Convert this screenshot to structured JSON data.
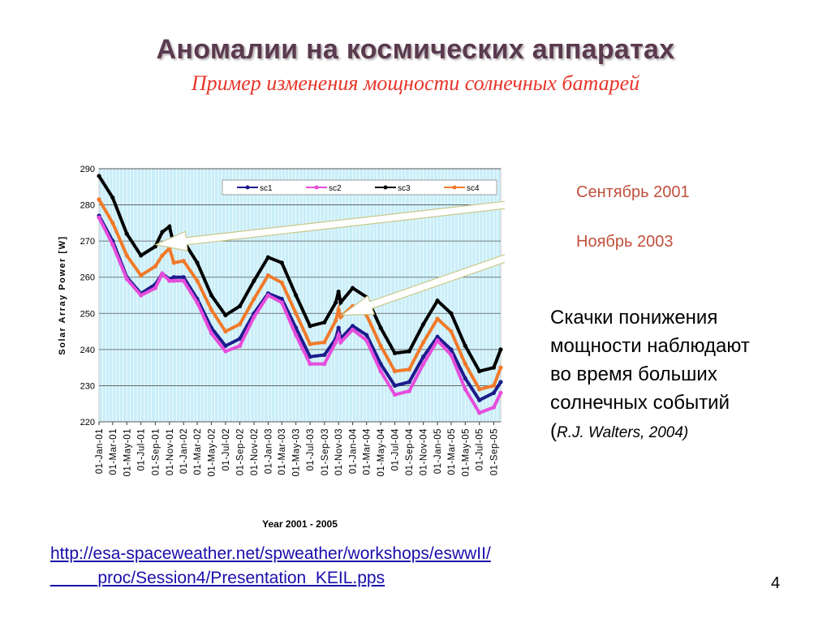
{
  "slide": {
    "title": "Аномалии на космических аппаратах",
    "subtitle": "Пример изменения мощности солнечных батарей",
    "note_1": "Сентябрь 2001",
    "note_2": "Ноябрь 2003",
    "body_lines": [
      "Скачки понижения",
      "мощности наблюдают",
      "во время больших",
      "солнечных событий"
    ],
    "citation_open": "(",
    "citation": "R.J. Walters, 2004)",
    "link_line1": "http://esa-spaceweather.net/spweather/workshops/eswwII/",
    "link_line2": "_____proc/Session4/Presentation_KEIL.pps",
    "page_number": "4"
  },
  "chart_data": {
    "type": "line",
    "title": "",
    "xlabel": "Year 2001 - 2005",
    "ylabel": "Solar Array Power [W]",
    "ylim": [
      220,
      290
    ],
    "yticks": [
      220,
      230,
      240,
      250,
      260,
      270,
      280,
      290
    ],
    "x_range": [
      "2001-01-01",
      "2005-10-01"
    ],
    "xtick_labels": [
      "01-Jan-01",
      "01-Mar-01",
      "01-May-01",
      "01-Jul-01",
      "01-Sep-01",
      "01-Nov-01",
      "01-Jan-02",
      "01-Mar-02",
      "01-May-02",
      "01-Jul-02",
      "01-Sep-02",
      "01-Nov-02",
      "01-Jan-03",
      "01-Mar-03",
      "01-May-03",
      "01-Jul-03",
      "01-Sep-03",
      "01-Nov-03",
      "01-Jan-04",
      "01-Mar-04",
      "01-May-04",
      "01-Jul-04",
      "01-Sep-04",
      "01-Nov-04",
      "01-Jan-05",
      "01-Mar-05",
      "01-May-05",
      "01-Jul-05",
      "01-Sep-05"
    ],
    "grid": true,
    "legend_position": "top",
    "background": "#c9eef8",
    "series": [
      {
        "name": "sc1",
        "color": "#1c1c8c",
        "points": [
          [
            "2001-01-01",
            277
          ],
          [
            "2001-03-01",
            270
          ],
          [
            "2001-05-01",
            260
          ],
          [
            "2001-07-01",
            255.5
          ],
          [
            "2001-09-01",
            258
          ],
          [
            "2001-10-01",
            261
          ],
          [
            "2001-11-01",
            259.5
          ],
          [
            "2001-11-20",
            260
          ],
          [
            "2002-01-01",
            260
          ],
          [
            "2002-03-01",
            254
          ],
          [
            "2002-05-01",
            246
          ],
          [
            "2002-07-01",
            241
          ],
          [
            "2002-09-01",
            243
          ],
          [
            "2002-11-01",
            250
          ],
          [
            "2003-01-01",
            255.5
          ],
          [
            "2003-03-01",
            254
          ],
          [
            "2003-05-01",
            246
          ],
          [
            "2003-07-01",
            238
          ],
          [
            "2003-09-01",
            238.5
          ],
          [
            "2003-10-20",
            243
          ],
          [
            "2003-11-01",
            246
          ],
          [
            "2003-11-10",
            243
          ],
          [
            "2004-01-01",
            246.5
          ],
          [
            "2004-03-01",
            244
          ],
          [
            "2004-05-01",
            236
          ],
          [
            "2004-07-01",
            230
          ],
          [
            "2004-09-01",
            231
          ],
          [
            "2004-11-01",
            238
          ],
          [
            "2005-01-01",
            243.5
          ],
          [
            "2005-03-01",
            240
          ],
          [
            "2005-05-01",
            232
          ],
          [
            "2005-07-01",
            226
          ],
          [
            "2005-09-01",
            228
          ],
          [
            "2005-10-01",
            231
          ]
        ]
      },
      {
        "name": "sc2",
        "color": "#e64ddc",
        "points": [
          [
            "2001-01-01",
            276.5
          ],
          [
            "2001-03-01",
            269
          ],
          [
            "2001-05-01",
            259.5
          ],
          [
            "2001-07-01",
            255
          ],
          [
            "2001-09-01",
            257
          ],
          [
            "2001-10-01",
            261
          ],
          [
            "2001-11-01",
            259
          ],
          [
            "2001-11-20",
            259
          ],
          [
            "2002-01-01",
            259
          ],
          [
            "2002-03-01",
            253
          ],
          [
            "2002-05-01",
            244.5
          ],
          [
            "2002-07-01",
            239.5
          ],
          [
            "2002-09-01",
            241
          ],
          [
            "2002-11-01",
            249
          ],
          [
            "2003-01-01",
            255
          ],
          [
            "2003-03-01",
            253
          ],
          [
            "2003-05-01",
            244
          ],
          [
            "2003-07-01",
            236
          ],
          [
            "2003-09-01",
            236
          ],
          [
            "2003-10-20",
            242
          ],
          [
            "2003-11-01",
            244
          ],
          [
            "2003-11-10",
            242
          ],
          [
            "2004-01-01",
            245.5
          ],
          [
            "2004-03-01",
            242.5
          ],
          [
            "2004-05-01",
            234
          ],
          [
            "2004-07-01",
            227.5
          ],
          [
            "2004-09-01",
            228.5
          ],
          [
            "2004-11-01",
            236
          ],
          [
            "2005-01-01",
            242.5
          ],
          [
            "2005-03-01",
            238.5
          ],
          [
            "2005-05-01",
            229
          ],
          [
            "2005-07-01",
            222.5
          ],
          [
            "2005-09-01",
            224
          ],
          [
            "2005-10-01",
            228
          ]
        ]
      },
      {
        "name": "sc3",
        "color": "#000000",
        "points": [
          [
            "2001-01-01",
            288
          ],
          [
            "2001-03-01",
            282
          ],
          [
            "2001-05-01",
            272
          ],
          [
            "2001-07-01",
            266
          ],
          [
            "2001-09-01",
            268.5
          ],
          [
            "2001-10-01",
            272.5
          ],
          [
            "2001-11-01",
            274
          ],
          [
            "2001-11-20",
            269
          ],
          [
            "2002-01-01",
            270
          ],
          [
            "2002-03-01",
            264
          ],
          [
            "2002-05-01",
            255
          ],
          [
            "2002-07-01",
            249.5
          ],
          [
            "2002-09-01",
            252
          ],
          [
            "2002-11-01",
            259
          ],
          [
            "2003-01-01",
            265.5
          ],
          [
            "2003-03-01",
            264
          ],
          [
            "2003-05-01",
            255
          ],
          [
            "2003-07-01",
            246.5
          ],
          [
            "2003-09-01",
            247.5
          ],
          [
            "2003-10-20",
            253
          ],
          [
            "2003-11-01",
            256
          ],
          [
            "2003-11-10",
            253
          ],
          [
            "2004-01-01",
            257
          ],
          [
            "2004-03-01",
            254.5
          ],
          [
            "2004-05-01",
            246
          ],
          [
            "2004-07-01",
            239
          ],
          [
            "2004-09-01",
            239.5
          ],
          [
            "2004-11-01",
            247
          ],
          [
            "2005-01-01",
            253.5
          ],
          [
            "2005-03-01",
            250
          ],
          [
            "2005-05-01",
            241
          ],
          [
            "2005-07-01",
            234
          ],
          [
            "2005-09-01",
            235
          ],
          [
            "2005-10-01",
            240
          ]
        ]
      },
      {
        "name": "sc4",
        "color": "#f07a2a",
        "points": [
          [
            "2001-01-01",
            281.5
          ],
          [
            "2001-03-01",
            275
          ],
          [
            "2001-05-01",
            266
          ],
          [
            "2001-07-01",
            260.5
          ],
          [
            "2001-09-01",
            263
          ],
          [
            "2001-10-01",
            266
          ],
          [
            "2001-11-01",
            268
          ],
          [
            "2001-11-20",
            264
          ],
          [
            "2002-01-01",
            264.5
          ],
          [
            "2002-03-01",
            259
          ],
          [
            "2002-05-01",
            251
          ],
          [
            "2002-07-01",
            245
          ],
          [
            "2002-09-01",
            247
          ],
          [
            "2002-11-01",
            254
          ],
          [
            "2003-01-01",
            260.5
          ],
          [
            "2003-03-01",
            258.5
          ],
          [
            "2003-05-01",
            250
          ],
          [
            "2003-07-01",
            241.5
          ],
          [
            "2003-09-01",
            242
          ],
          [
            "2003-10-20",
            248
          ],
          [
            "2003-11-01",
            251
          ],
          [
            "2003-11-10",
            249
          ],
          [
            "2004-01-01",
            252
          ],
          [
            "2004-03-01",
            249.5
          ],
          [
            "2004-05-01",
            241
          ],
          [
            "2004-07-01",
            234
          ],
          [
            "2004-09-01",
            234.5
          ],
          [
            "2004-11-01",
            242
          ],
          [
            "2005-01-01",
            248.5
          ],
          [
            "2005-03-01",
            245
          ],
          [
            "2005-05-01",
            236
          ],
          [
            "2005-07-01",
            229
          ],
          [
            "2005-09-01",
            230
          ],
          [
            "2005-10-01",
            235
          ]
        ]
      }
    ],
    "annotations": [
      {
        "text": "Сентябрь 2001",
        "points_to": "2001-10-01"
      },
      {
        "text": "Ноябрь 2003",
        "points_to": "2003-11-01"
      }
    ]
  }
}
